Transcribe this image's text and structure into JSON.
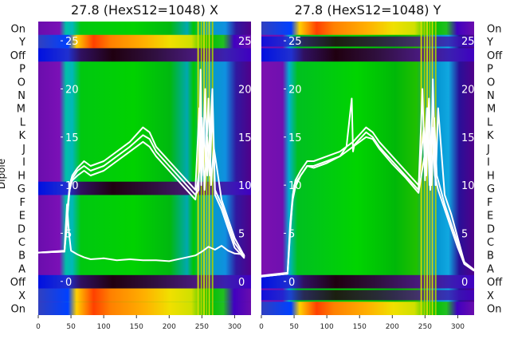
{
  "chart_data": [
    {
      "type": "heatmap",
      "panel": "X",
      "title": "27.8 (HexS12=1048) X",
      "ylabel": "Dipole",
      "x_ticks": [
        0,
        50,
        100,
        150,
        200,
        250,
        300
      ],
      "xlim": [
        0,
        325
      ],
      "overlay_ticks": [
        0,
        5,
        10,
        15,
        20,
        25
      ],
      "overlay_ylim": [
        -3.5,
        27
      ],
      "row_labels": [
        "On",
        "Y",
        "Off",
        "P",
        "O",
        "N",
        "M",
        "L",
        "K",
        "J",
        "I",
        "H",
        "G",
        "F",
        "E",
        "D",
        "C",
        "B",
        "A",
        "Off",
        "X",
        "On"
      ],
      "lines": [
        {
          "x": [
            0,
            40,
            44,
            47,
            50,
            60,
            70,
            80,
            100,
            120,
            140,
            160,
            170,
            180,
            200,
            220,
            240,
            245,
            248,
            250,
            252,
            255,
            258,
            262,
            266,
            270,
            280,
            290,
            300,
            315
          ],
          "y": [
            3.0,
            3.1,
            6,
            9,
            10.5,
            11.5,
            12,
            11.5,
            12,
            13,
            14,
            15.2,
            14.8,
            13.5,
            12,
            10.5,
            9,
            9.5,
            22,
            11,
            14,
            20,
            11,
            15,
            20,
            9.5,
            8,
            6,
            4,
            2.5
          ]
        },
        {
          "x": [
            0,
            40,
            44,
            48,
            52,
            60,
            70,
            80,
            100,
            120,
            140,
            160,
            170,
            180,
            200,
            220,
            240,
            246,
            249,
            253,
            256,
            260,
            264,
            268,
            280,
            290,
            300,
            315
          ],
          "y": [
            3.0,
            3.1,
            7,
            10,
            11,
            11.8,
            12.5,
            12,
            12.5,
            13.5,
            14.5,
            16,
            15.5,
            14,
            12.5,
            11,
            9.5,
            18,
            10,
            16,
            12,
            19,
            10,
            14,
            8.5,
            6.5,
            4.5,
            2.6
          ]
        },
        {
          "x": [
            0,
            40,
            44,
            48,
            52,
            60,
            70,
            80,
            100,
            120,
            140,
            160,
            170,
            180,
            200,
            220,
            240,
            247,
            250,
            254,
            258,
            262,
            266,
            270,
            280,
            290,
            300,
            315
          ],
          "y": [
            3.0,
            3.1,
            6.5,
            9.5,
            10.5,
            11,
            11.5,
            11,
            11.5,
            12.5,
            13.5,
            14.5,
            14,
            13,
            11.5,
            10,
            8.5,
            12,
            17,
            9.5,
            15,
            11,
            18,
            9,
            7.5,
            5.5,
            3.5,
            2.4
          ]
        },
        {
          "x": [
            0,
            40,
            44,
            47,
            50,
            60,
            70,
            80,
            100,
            120,
            140,
            160,
            180,
            200,
            220,
            240,
            250,
            260,
            270,
            280,
            290,
            300,
            315
          ],
          "y": [
            3.0,
            3.2,
            8,
            5,
            3.2,
            2.8,
            2.5,
            2.3,
            2.4,
            2.2,
            2.3,
            2.2,
            2.2,
            2.1,
            2.4,
            2.7,
            3.1,
            3.6,
            3.3,
            3.7,
            3.2,
            2.9,
            2.8
          ]
        }
      ]
    },
    {
      "type": "heatmap",
      "panel": "Y",
      "title": "27.8 (HexS12=1048) Y",
      "x_ticks": [
        0,
        50,
        100,
        150,
        200,
        250,
        300
      ],
      "xlim": [
        0,
        325
      ],
      "overlay_ticks": [
        0,
        5,
        10,
        15,
        20,
        25
      ],
      "overlay_ylim": [
        -3.5,
        27
      ],
      "row_labels": [
        "On",
        "Y",
        "Off",
        "P",
        "O",
        "N",
        "M",
        "L",
        "K",
        "J",
        "I",
        "H",
        "G",
        "F",
        "E",
        "D",
        "C",
        "B",
        "A",
        "Off",
        "X",
        "On"
      ],
      "lines": [
        {
          "x": [
            0,
            40,
            44,
            47,
            50,
            60,
            70,
            80,
            100,
            120,
            130,
            138,
            140,
            142,
            160,
            170,
            180,
            200,
            220,
            240,
            246,
            250,
            254,
            258,
            262,
            266,
            270,
            280,
            290,
            300,
            310,
            325
          ],
          "y": [
            0.5,
            0.8,
            5,
            8,
            10,
            11,
            12,
            12,
            12.5,
            13,
            14,
            19,
            13.5,
            14.2,
            15.5,
            15,
            14,
            12.5,
            11,
            9.5,
            20,
            10.5,
            18,
            9.5,
            21,
            10,
            18,
            9,
            7,
            4.5,
            2,
            1.2
          ]
        },
        {
          "x": [
            0,
            40,
            44,
            48,
            52,
            60,
            70,
            80,
            100,
            120,
            140,
            160,
            170,
            180,
            200,
            220,
            240,
            248,
            252,
            256,
            260,
            264,
            268,
            280,
            290,
            300,
            310,
            325
          ],
          "y": [
            0.6,
            0.9,
            6,
            9,
            10.5,
            11.5,
            12.5,
            12.5,
            13,
            13.5,
            14.5,
            16,
            15.5,
            14.5,
            13,
            11.5,
            10,
            16,
            11,
            19,
            10,
            17,
            11,
            8,
            6,
            4,
            2,
            1.2
          ]
        },
        {
          "x": [
            0,
            40,
            44,
            48,
            52,
            60,
            70,
            80,
            100,
            120,
            140,
            160,
            170,
            180,
            200,
            220,
            240,
            249,
            253,
            257,
            261,
            265,
            270,
            280,
            290,
            300,
            310,
            325
          ],
          "y": [
            0.5,
            0.8,
            5.5,
            8.5,
            9.8,
            11,
            12,
            11.8,
            12.3,
            13,
            14,
            15,
            14.8,
            13.8,
            12.2,
            10.8,
            9.2,
            13,
            18,
            10,
            16,
            11,
            9.5,
            7.5,
            5.5,
            3.5,
            1.8,
            1.1
          ]
        }
      ]
    }
  ]
}
